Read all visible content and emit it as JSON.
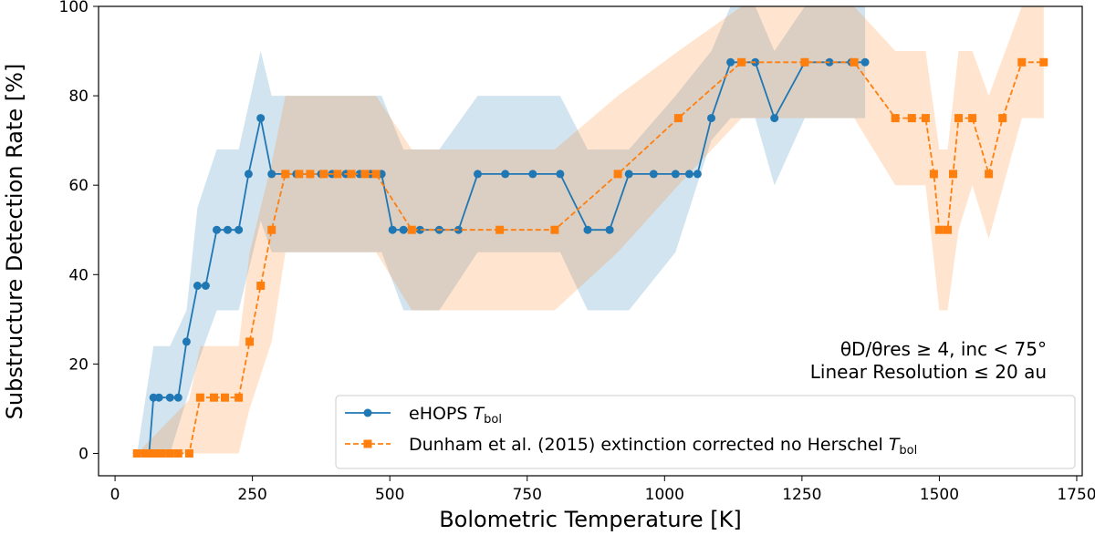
{
  "chart_data": {
    "type": "line",
    "xlabel": "Bolometric Temperature [K]",
    "ylabel": "Substructure Detection Rate [%]",
    "xlim": [
      -30,
      1760
    ],
    "ylim": [
      -5,
      100
    ],
    "xticks": [
      0,
      250,
      500,
      750,
      1000,
      1250,
      1500,
      1750
    ],
    "yticks": [
      0,
      20,
      40,
      60,
      80,
      100
    ],
    "legend_position": "lower-right",
    "annotations": {
      "line1": "θD/θres ≥ 4, inc < 75°",
      "line2": "Linear Resolution ≤ 20 au"
    },
    "series": [
      {
        "name": "eHOPS T_bol",
        "legend_main": "eHOPS ",
        "legend_sym": "T",
        "legend_sub": "bol",
        "color": "#1f77b4",
        "linestyle": "solid",
        "marker": "circle",
        "x": [
          40,
          55,
          62,
          70,
          80,
          100,
          115,
          130,
          150,
          165,
          185,
          205,
          225,
          243,
          265,
          285,
          310,
          330,
          355,
          375,
          395,
          420,
          445,
          465,
          485,
          505,
          525,
          555,
          590,
          625,
          660,
          710,
          760,
          810,
          860,
          900,
          935,
          980,
          1020,
          1045,
          1060,
          1085,
          1120,
          1165,
          1200,
          1255,
          1300,
          1340,
          1365
        ],
        "y": [
          0,
          0,
          0,
          12.5,
          12.5,
          12.5,
          12.5,
          25,
          37.5,
          37.5,
          50,
          50,
          50,
          62.5,
          75,
          62.5,
          62.5,
          62.5,
          62.5,
          62.5,
          62.5,
          62.5,
          62.5,
          62.5,
          62.5,
          50,
          50,
          50,
          50,
          50,
          62.5,
          62.5,
          62.5,
          62.5,
          50,
          50,
          62.5,
          62.5,
          62.5,
          62.5,
          62.5,
          75,
          87.5,
          87.5,
          75,
          87.5,
          87.5,
          87.5,
          87.5
        ],
        "band_x": [
          40,
          70,
          100,
          130,
          150,
          185,
          225,
          265,
          285,
          355,
          485,
          525,
          590,
          660,
          810,
          860,
          935,
          1020,
          1085,
          1120,
          1165,
          1200,
          1255,
          1365
        ],
        "band_low": [
          0,
          0,
          0,
          12,
          20,
          32,
          32,
          52,
          45,
          45,
          45,
          32,
          32,
          45,
          45,
          32,
          32,
          45,
          70,
          75,
          75,
          60,
          75,
          75
        ],
        "band_high": [
          0,
          24,
          24,
          32,
          55,
          68,
          68,
          90,
          80,
          80,
          80,
          68,
          68,
          80,
          80,
          68,
          68,
          80,
          90,
          100,
          100,
          90,
          100,
          100
        ]
      },
      {
        "name": "Dunham et al. (2015) extinction corrected no Herschel T_bol",
        "legend_main": "Dunham et al. (2015) extinction corrected no Herschel ",
        "legend_sym": "T",
        "legend_sub": "bol",
        "color": "#ff7f0e",
        "linestyle": "dashed",
        "marker": "square",
        "x": [
          40,
          55,
          65,
          75,
          85,
          100,
          115,
          135,
          155,
          180,
          200,
          225,
          245,
          265,
          285,
          310,
          335,
          355,
          380,
          405,
          430,
          455,
          475,
          540,
          700,
          800,
          915,
          1025,
          1140,
          1255,
          1345,
          1420,
          1450,
          1475,
          1490,
          1500,
          1515,
          1525,
          1535,
          1560,
          1590,
          1615,
          1650,
          1690
        ],
        "y": [
          0,
          0,
          0,
          0,
          0,
          0,
          0,
          0,
          12.5,
          12.5,
          12.5,
          12.5,
          25,
          37.5,
          50,
          62.5,
          62.5,
          62.5,
          62.5,
          62.5,
          62.5,
          62.5,
          62.5,
          50,
          50,
          50,
          62.5,
          75,
          87.5,
          87.5,
          87.5,
          75,
          75,
          75,
          62.5,
          50,
          50,
          62.5,
          75,
          75,
          62.5,
          75,
          87.5,
          87.5
        ],
        "band_x": [
          40,
          135,
          155,
          225,
          245,
          285,
          310,
          475,
          540,
          800,
          915,
          1025,
          1140,
          1255,
          1345,
          1420,
          1475,
          1500,
          1515,
          1535,
          1560,
          1590,
          1650,
          1690
        ],
        "band_low": [
          0,
          0,
          0,
          0,
          10,
          25,
          45,
          45,
          32,
          32,
          45,
          60,
          75,
          75,
          75,
          60,
          60,
          32,
          32,
          50,
          60,
          48,
          75,
          75
        ],
        "band_high": [
          0,
          12,
          24,
          24,
          45,
          65,
          80,
          80,
          68,
          68,
          80,
          90,
          100,
          100,
          100,
          90,
          90,
          68,
          68,
          90,
          90,
          80,
          100,
          100
        ]
      }
    ]
  }
}
